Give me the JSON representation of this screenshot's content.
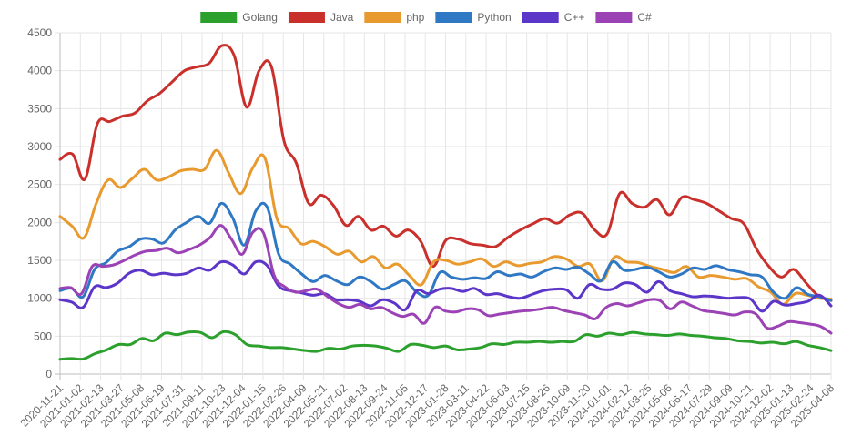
{
  "chart_data": {
    "type": "line",
    "title": "",
    "xlabel": "",
    "ylabel": "",
    "ylim": [
      0,
      4500
    ],
    "yticks": [
      0,
      500,
      1000,
      1500,
      2000,
      2500,
      3000,
      3500,
      4000,
      4500
    ],
    "grid": true,
    "legend_position": "top-center",
    "xlabels": [
      "2020-11-21",
      "2021-01-02",
      "2021-02-13",
      "2021-03-27",
      "2021-05-08",
      "2021-06-19",
      "2021-07-31",
      "2021-09-11",
      "2021-10-23",
      "2021-12-04",
      "2022-01-15",
      "2022-02-26",
      "2022-04-09",
      "2022-05-21",
      "2022-07-02",
      "2022-08-13",
      "2022-09-24",
      "2022-11-05",
      "2022-12-17",
      "2023-01-28",
      "2023-03-11",
      "2023-04-22",
      "2023-06-03",
      "2023-07-15",
      "2023-08-26",
      "2023-10-09",
      "2023-11-20",
      "2024-01-01",
      "2024-02-12",
      "2024-03-25",
      "2024-05-06",
      "2024-06-17",
      "2024-07-29",
      "2024-09-09",
      "2024-10-21",
      "2024-12-02",
      "2025-01-13",
      "2025-02-24",
      "2025-04-08"
    ],
    "series": [
      {
        "name": "Golang",
        "color": "#2ca02c",
        "values": [
          195,
          205,
          200,
          270,
          320,
          390,
          390,
          470,
          440,
          540,
          520,
          555,
          550,
          480,
          560,
          520,
          390,
          370,
          350,
          350,
          330,
          310,
          300,
          340,
          330,
          370,
          380,
          370,
          340,
          300,
          390,
          380,
          350,
          370,
          320,
          330,
          350,
          400,
          390,
          420,
          420,
          430,
          420,
          430,
          430,
          520,
          500,
          540,
          520,
          550,
          530,
          520,
          510,
          530,
          510,
          500,
          480,
          470,
          440,
          430,
          410,
          420,
          400,
          430,
          380,
          350,
          310
        ]
      },
      {
        "name": "Java",
        "color": "#c9302c",
        "values": [
          2830,
          2900,
          2570,
          3300,
          3330,
          3400,
          3440,
          3600,
          3700,
          3850,
          4000,
          4050,
          4100,
          4330,
          4200,
          3520,
          4000,
          4050,
          3080,
          2780,
          2250,
          2360,
          2220,
          1960,
          2080,
          1900,
          1950,
          1820,
          1900,
          1750,
          1420,
          1760,
          1780,
          1720,
          1700,
          1680,
          1800,
          1900,
          1980,
          2050,
          1990,
          2100,
          2120,
          1900,
          1850,
          2380,
          2250,
          2200,
          2300,
          2100,
          2330,
          2300,
          2250,
          2150,
          2050,
          1980,
          1650,
          1420,
          1280,
          1380,
          1200,
          1030,
          970
        ]
      },
      {
        "name": "php",
        "color": "#e89a2f",
        "values": [
          2080,
          1950,
          1800,
          2250,
          2560,
          2460,
          2580,
          2700,
          2560,
          2600,
          2680,
          2700,
          2700,
          2950,
          2650,
          2380,
          2720,
          2850,
          2050,
          1920,
          1720,
          1750,
          1680,
          1580,
          1620,
          1480,
          1550,
          1400,
          1450,
          1300,
          1180,
          1480,
          1500,
          1450,
          1480,
          1520,
          1420,
          1480,
          1430,
          1460,
          1480,
          1550,
          1520,
          1420,
          1450,
          1230,
          1540,
          1480,
          1470,
          1420,
          1380,
          1340,
          1420,
          1280,
          1300,
          1280,
          1250,
          1260,
          1150,
          1080,
          920,
          1060,
          1040,
          1000,
          990
        ]
      },
      {
        "name": "Python",
        "color": "#2f78c4",
        "values": [
          1100,
          1130,
          1020,
          1380,
          1470,
          1620,
          1680,
          1780,
          1780,
          1730,
          1900,
          2000,
          2080,
          1990,
          2250,
          2060,
          1700,
          2150,
          2200,
          1580,
          1450,
          1320,
          1220,
          1300,
          1230,
          1180,
          1280,
          1220,
          1120,
          1180,
          1230,
          1080,
          1040,
          1340,
          1280,
          1250,
          1270,
          1260,
          1350,
          1300,
          1320,
          1280,
          1350,
          1400,
          1380,
          1410,
          1320,
          1230,
          1480,
          1370,
          1380,
          1410,
          1350,
          1280,
          1320,
          1400,
          1380,
          1430,
          1380,
          1350,
          1310,
          1280,
          1080,
          1000,
          1140,
          1050,
          1020,
          970
        ]
      },
      {
        "name": "C++",
        "color": "#5c35c9",
        "values": [
          980,
          950,
          880,
          1150,
          1140,
          1200,
          1330,
          1370,
          1310,
          1330,
          1310,
          1330,
          1400,
          1370,
          1480,
          1440,
          1320,
          1480,
          1430,
          1160,
          1100,
          1070,
          1040,
          1060,
          980,
          980,
          960,
          900,
          980,
          940,
          850,
          1100,
          1060,
          1120,
          1130,
          1090,
          1130,
          1050,
          1060,
          1020,
          1000,
          1050,
          1100,
          1120,
          1110,
          1000,
          1180,
          1120,
          1120,
          1200,
          1180,
          1080,
          1220,
          1100,
          1060,
          1020,
          1030,
          1020,
          1000,
          1010,
          990,
          830,
          960,
          910,
          930,
          960,
          1040,
          900
        ]
      },
      {
        "name": "C#",
        "color": "#9b42b5",
        "values": [
          1130,
          1140,
          1060,
          1420,
          1420,
          1440,
          1500,
          1570,
          1620,
          1630,
          1660,
          1600,
          1640,
          1700,
          1800,
          1960,
          1780,
          1580,
          1870,
          1860,
          1300,
          1150,
          1080,
          1100,
          1120,
          1020,
          930,
          880,
          920,
          860,
          880,
          810,
          760,
          790,
          670,
          880,
          830,
          820,
          860,
          850,
          770,
          790,
          810,
          830,
          840,
          860,
          880,
          840,
          810,
          780,
          730,
          880,
          930,
          900,
          940,
          980,
          970,
          860,
          950,
          900,
          840,
          820,
          800,
          780,
          820,
          790,
          610,
          630,
          690,
          680,
          660,
          630,
          540
        ]
      }
    ]
  }
}
